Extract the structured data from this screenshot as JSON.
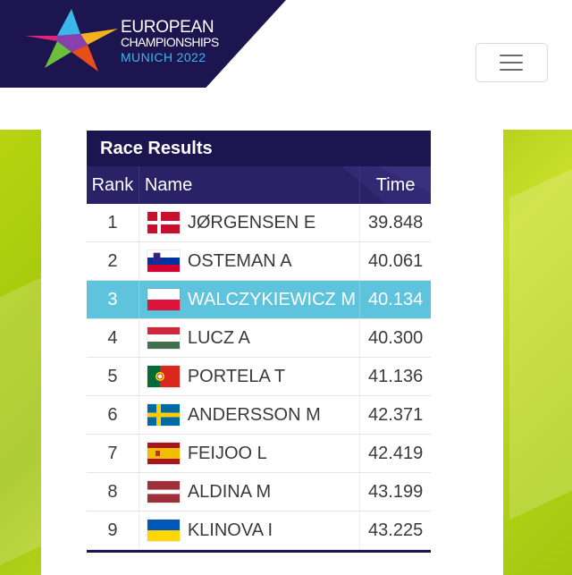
{
  "brand": {
    "line1": "EUROPEAN",
    "line2": "CHAMPIONSHIPS",
    "line3": "MUNICH 2022",
    "logo_icon": "star-burst-logo"
  },
  "header": {
    "menu_icon": "hamburger-icon"
  },
  "colors": {
    "navy": "#1d1550",
    "highlight": "#5ec4dd",
    "green": "#b6d411"
  },
  "results": {
    "title": "Race Results",
    "columns": {
      "rank": "Rank",
      "name": "Name",
      "time": "Time"
    },
    "rows": [
      {
        "rank": "1",
        "name": "JØRGENSEN E",
        "time": "39.848",
        "flag": "denmark-flag-icon"
      },
      {
        "rank": "2",
        "name": "OSTEMAN A",
        "time": "40.061",
        "flag": "slovenia-flag-icon"
      },
      {
        "rank": "3",
        "name": "WALCZYKIEWICZ M",
        "time": "40.134",
        "flag": "poland-flag-icon",
        "highlighted": true
      },
      {
        "rank": "4",
        "name": "LUCZ A",
        "time": "40.300",
        "flag": "hungary-flag-icon"
      },
      {
        "rank": "5",
        "name": "PORTELA T",
        "time": "41.136",
        "flag": "portugal-flag-icon"
      },
      {
        "rank": "6",
        "name": "ANDERSSON M",
        "time": "42.371",
        "flag": "sweden-flag-icon"
      },
      {
        "rank": "7",
        "name": "FEIJOO L",
        "time": "42.419",
        "flag": "spain-flag-icon"
      },
      {
        "rank": "8",
        "name": "ALDINA M",
        "time": "43.199",
        "flag": "latvia-flag-icon"
      },
      {
        "rank": "9",
        "name": "KLINOVA I",
        "time": "43.225",
        "flag": "ukraine-flag-icon"
      }
    ]
  }
}
